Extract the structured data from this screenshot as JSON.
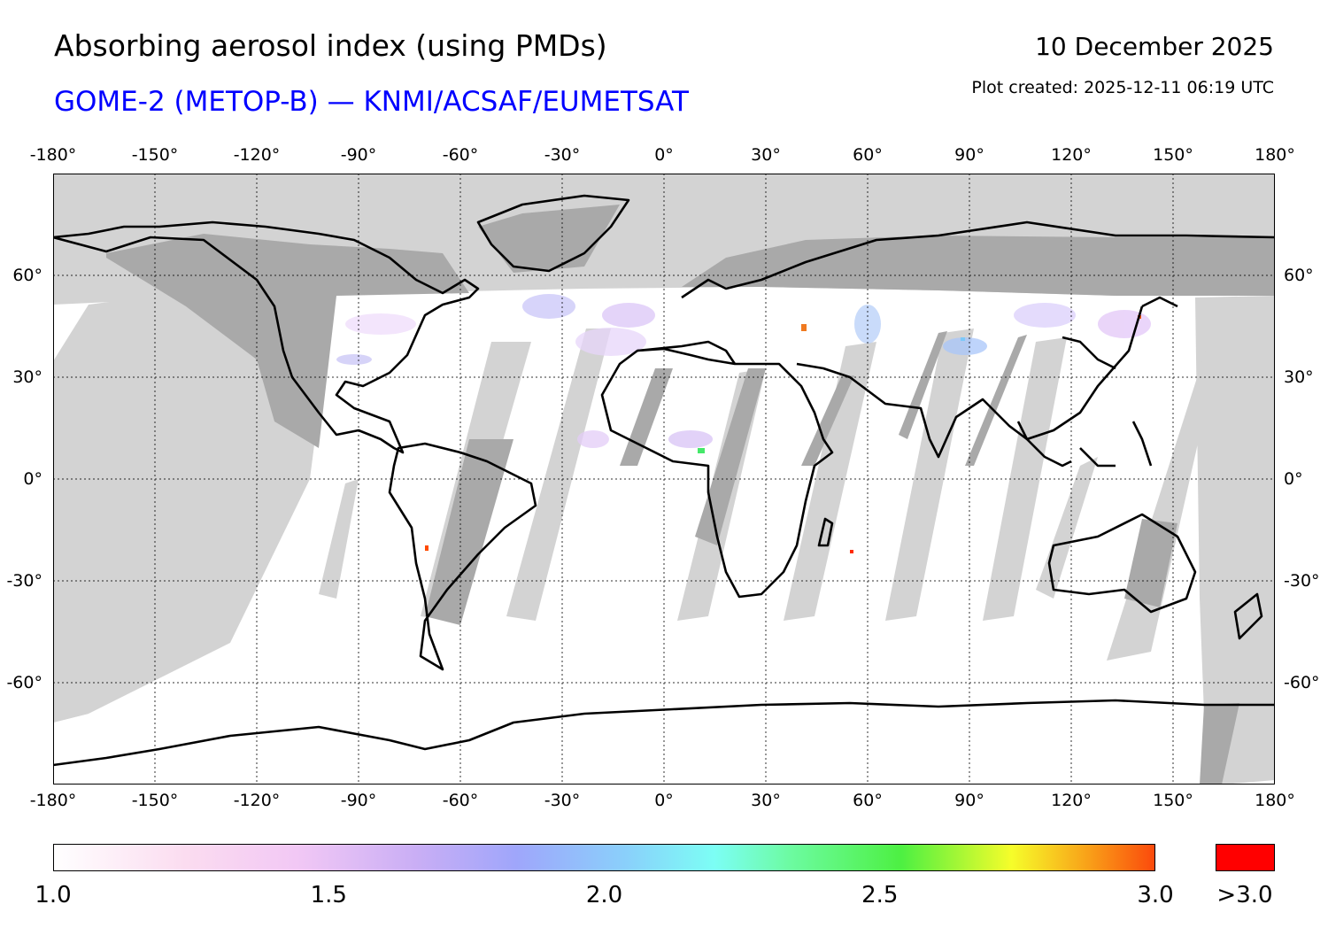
{
  "header": {
    "title": "Absorbing aerosol index (using PMDs)",
    "subtitle": "GOME-2 (METOP-B) — KNMI/ACSAF/EUMETSAT",
    "date": "10 December 2025",
    "created": "Plot created: 2025-12-11 06:19 UTC"
  },
  "map": {
    "projection": "equirectangular",
    "lon_range": [
      -180,
      180
    ],
    "lat_range": [
      -90,
      90
    ],
    "lon_ticks": [
      {
        "value": -180,
        "label": "-180°"
      },
      {
        "value": -150,
        "label": "-150°"
      },
      {
        "value": -120,
        "label": "-120°"
      },
      {
        "value": -90,
        "label": "-90°"
      },
      {
        "value": -60,
        "label": "-60°"
      },
      {
        "value": -30,
        "label": "-30°"
      },
      {
        "value": 0,
        "label": "0°"
      },
      {
        "value": 30,
        "label": "30°"
      },
      {
        "value": 60,
        "label": "60°"
      },
      {
        "value": 90,
        "label": "90°"
      },
      {
        "value": 120,
        "label": "120°"
      },
      {
        "value": 150,
        "label": "150°"
      },
      {
        "value": 180,
        "label": "180°"
      }
    ],
    "lat_ticks": [
      {
        "value": 60,
        "label": "60°"
      },
      {
        "value": 30,
        "label": "30°"
      },
      {
        "value": 0,
        "label": "0°"
      },
      {
        "value": -30,
        "label": "-30°"
      },
      {
        "value": -60,
        "label": "-60°"
      }
    ],
    "colors": {
      "no_data": "#d3d3d3",
      "land_no_data": "#a9a9a9",
      "background": "#ffffff",
      "coast": "#000000",
      "over_range": "#ff0000"
    }
  },
  "colorbar": {
    "min": 1.0,
    "max": 3.0,
    "ticks": [
      {
        "value": 1.0,
        "label": "1.0"
      },
      {
        "value": 1.5,
        "label": "1.5"
      },
      {
        "value": 2.0,
        "label": "2.0"
      },
      {
        "value": 2.5,
        "label": "2.5"
      },
      {
        "value": 3.0,
        "label": "3.0"
      }
    ],
    "over_label": ">3.0"
  }
}
